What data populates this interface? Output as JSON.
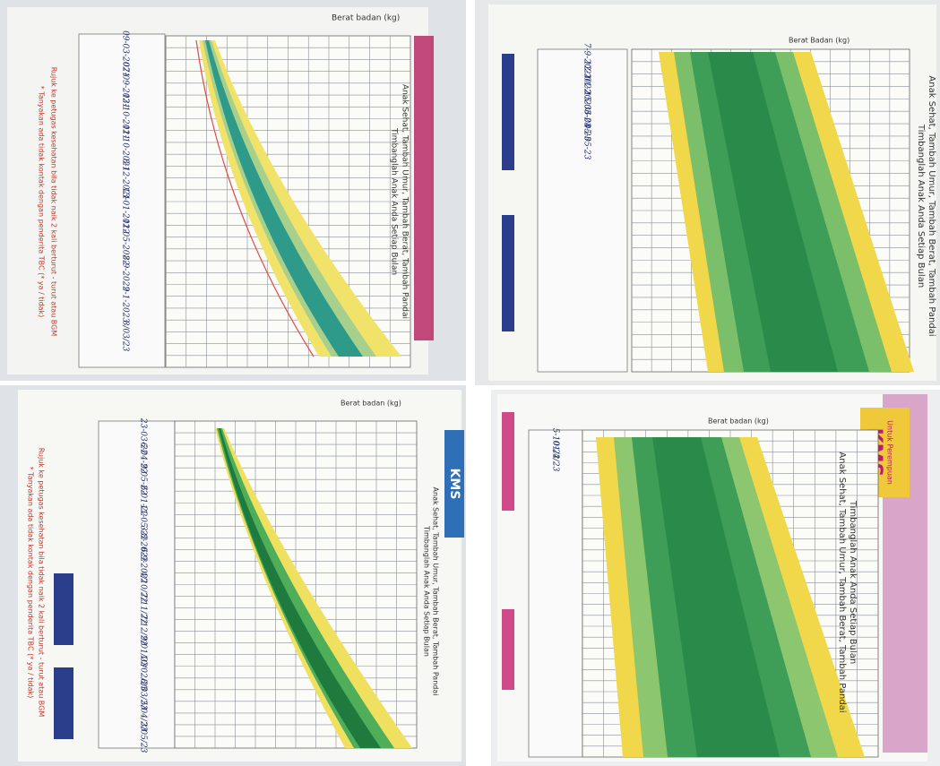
{
  "panels": [
    {
      "axis_label": "Berat badan (kg)",
      "slogan": "Anak Sehat, Tambah Umur, Tambah Berat, Tambah Pandai",
      "heading": "Timbanglah Anak Anda Setiap Bulan",
      "referral": "Rujuk ke petugas kesehatan bila tidak naik 2 kali berturut - turut atau BGM",
      "tb_note": "* Tanyakan ada tidak kontak dengan penderita TBC (* ya / tidak)",
      "entries": [
        "09-03-2021",
        "07-09-2021",
        "13-10-2021",
        "11-10-2021",
        "8-12-2021",
        "13-01-2022",
        "11-05-2022",
        "8-9-2022",
        "9-1-2023",
        "8/03/23"
      ]
    },
    {
      "axis_label": "Berat Badan (kg)",
      "slogan": "Anak Sehat, Tambah Umur, Tambah Berat, Tambah Pandai",
      "heading": "Timbanglah Anak Anda Setiap Bulan",
      "entries": [
        "7-9-2021",
        "12-2022",
        "01-2023",
        "15-03-23",
        "6-04-23",
        "05-05-23"
      ]
    },
    {
      "axis_label": "Berat badan (kg)",
      "brand": "KMS",
      "slogan": "Anak Sehat, Tambah Umur, Tambah Berat, Tambah Pandai",
      "heading": "Timbanglah Anak Anda Setiap Bulan",
      "referral": "Rujuk ke petugas kesehatan bila tidak naik 2 kali berturut - turut atau BGM",
      "tb_note": "* Tanyakan ada tidak kontak dengan penderita TBC (* ya / tidak)",
      "entries": [
        "23-03-22",
        "6-04-22",
        "9-05-22",
        "6-01-22",
        "11-05-22",
        "3-8-2022",
        "6-9-2022",
        "4/10/22",
        "7/11/22",
        "7/12/22",
        "9/01/23",
        "10/02/23",
        "8/03/23",
        "5/04/23",
        "3/05/23"
      ]
    },
    {
      "brand": "KMS",
      "subtitle": "Untuk Perempuan",
      "axis_label": "Berat badan (kg)",
      "heading": "Timbanglah Anak Anda Setiap Bulan",
      "slogan": "Anak Sehat, Tambah Umur, Tambah Berat, Tambah Pandai",
      "entries": [
        "5-10-22",
        "01/4/23"
      ]
    }
  ]
}
